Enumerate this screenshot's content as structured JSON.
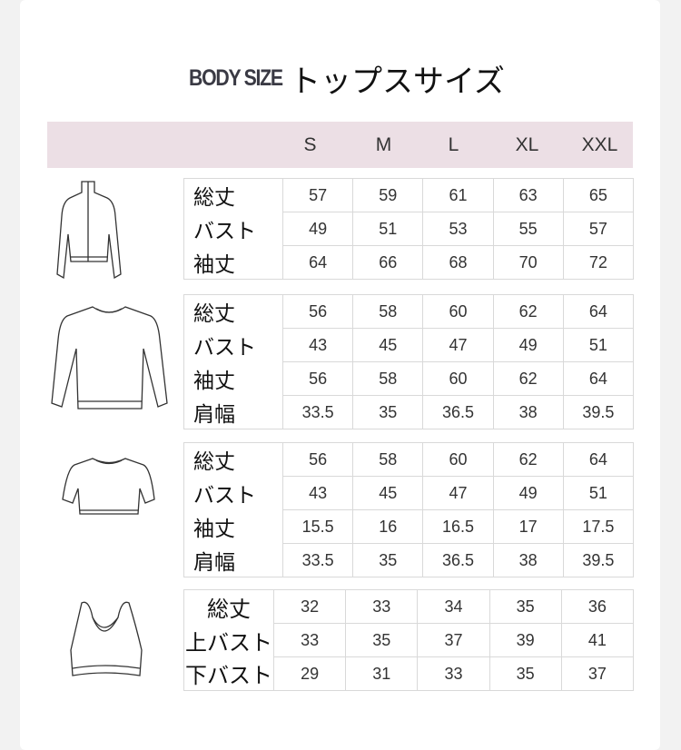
{
  "title": {
    "en": "BODY SIZE",
    "jp": "トップスサイズ"
  },
  "sizes": [
    "S",
    "M",
    "L",
    "XL",
    "XXL"
  ],
  "tables": [
    {
      "icon": "turtleneck-long-sleeve-icon",
      "rows": [
        {
          "label": "総丈",
          "values": [
            "57",
            "59",
            "61",
            "63",
            "65"
          ]
        },
        {
          "label": "バスト",
          "values": [
            "49",
            "51",
            "53",
            "55",
            "57"
          ]
        },
        {
          "label": "袖丈",
          "values": [
            "64",
            "66",
            "68",
            "70",
            "72"
          ]
        }
      ]
    },
    {
      "icon": "crewneck-long-sleeve-icon",
      "rows": [
        {
          "label": "総丈",
          "values": [
            "56",
            "58",
            "60",
            "62",
            "64"
          ]
        },
        {
          "label": "バスト",
          "values": [
            "43",
            "45",
            "47",
            "49",
            "51"
          ]
        },
        {
          "label": "袖丈",
          "values": [
            "56",
            "58",
            "60",
            "62",
            "64"
          ]
        },
        {
          "label": "肩幅",
          "values": [
            "33.5",
            "35",
            "36.5",
            "38",
            "39.5"
          ]
        }
      ]
    },
    {
      "icon": "short-sleeve-tshirt-icon",
      "rows": [
        {
          "label": "総丈",
          "values": [
            "56",
            "58",
            "60",
            "62",
            "64"
          ]
        },
        {
          "label": "バスト",
          "values": [
            "43",
            "45",
            "47",
            "49",
            "51"
          ]
        },
        {
          "label": "袖丈",
          "values": [
            "15.5",
            "16",
            "16.5",
            "17",
            "17.5"
          ]
        },
        {
          "label": "肩幅",
          "values": [
            "33.5",
            "35",
            "36.5",
            "38",
            "39.5"
          ]
        }
      ]
    },
    {
      "icon": "sports-bra-icon",
      "rows": [
        {
          "label": "総丈",
          "values": [
            "32",
            "33",
            "34",
            "35",
            "36"
          ]
        },
        {
          "label": "上バスト",
          "values": [
            "33",
            "35",
            "37",
            "39",
            "41"
          ]
        },
        {
          "label": "下バスト",
          "values": [
            "29",
            "31",
            "33",
            "35",
            "37"
          ]
        }
      ]
    }
  ],
  "colors": {
    "header_band": "#ecdfe5",
    "border": "#d9d9d9"
  }
}
